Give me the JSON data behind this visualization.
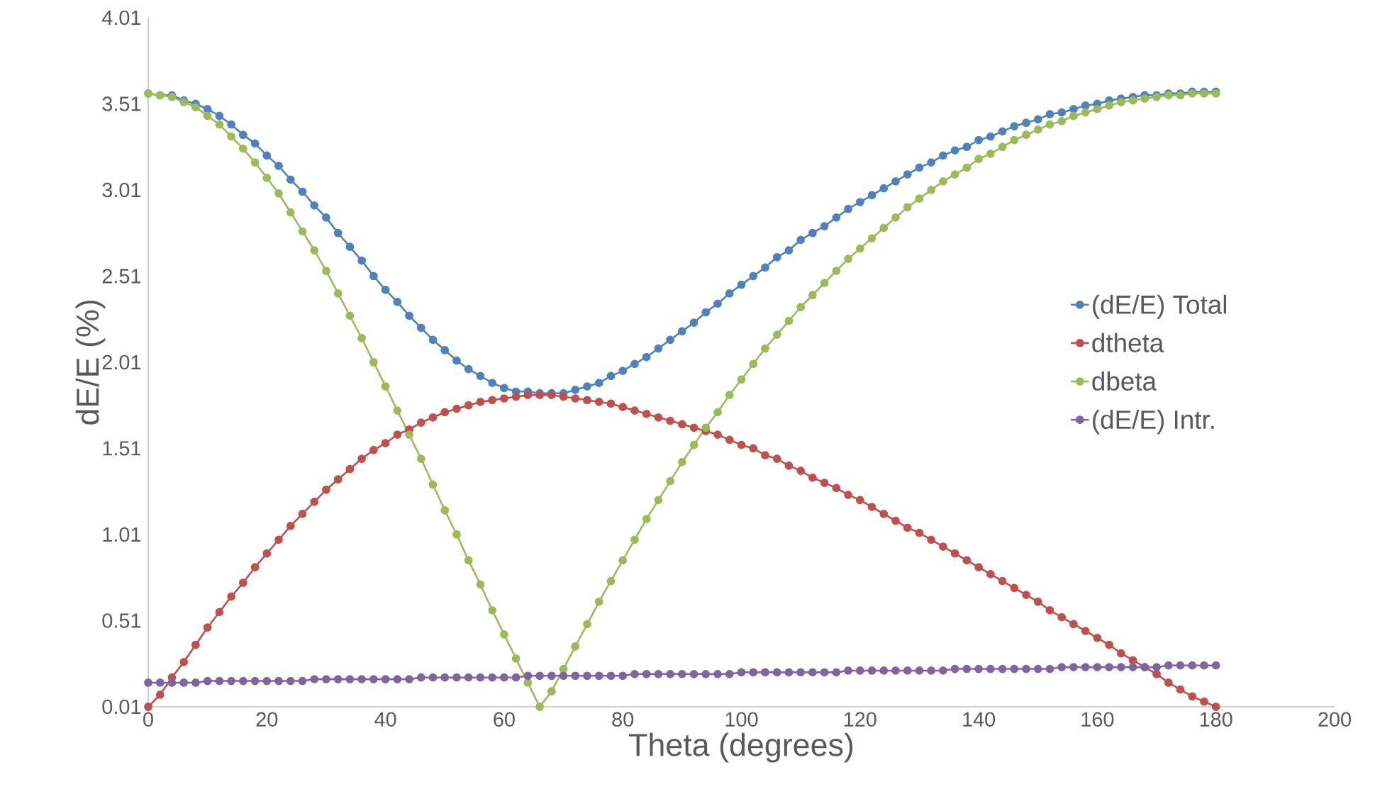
{
  "chart_data": {
    "type": "line",
    "xlabel": "Theta (degrees)",
    "ylabel": "dE/E (%)",
    "x": [
      0,
      2,
      4,
      6,
      8,
      10,
      12,
      14,
      16,
      18,
      20,
      22,
      24,
      26,
      28,
      30,
      32,
      34,
      36,
      38,
      40,
      42,
      44,
      46,
      48,
      50,
      52,
      54,
      56,
      58,
      60,
      62,
      64,
      66,
      68,
      70,
      72,
      74,
      76,
      78,
      80,
      82,
      84,
      86,
      88,
      90,
      92,
      94,
      96,
      98,
      100,
      102,
      104,
      106,
      108,
      110,
      112,
      114,
      116,
      118,
      120,
      122,
      124,
      126,
      128,
      130,
      132,
      134,
      136,
      138,
      140,
      142,
      144,
      146,
      148,
      150,
      152,
      154,
      156,
      158,
      160,
      162,
      164,
      166,
      168,
      170,
      172,
      174,
      176,
      178,
      180
    ],
    "series": [
      {
        "name": "(dE/E) Total",
        "color": "#4f81bd",
        "values": [
          3.57,
          3.56,
          3.56,
          3.53,
          3.51,
          3.48,
          3.44,
          3.39,
          3.33,
          3.28,
          3.21,
          3.15,
          3.07,
          3.0,
          2.92,
          2.85,
          2.76,
          2.68,
          2.6,
          2.51,
          2.43,
          2.36,
          2.28,
          2.21,
          2.14,
          2.08,
          2.02,
          1.97,
          1.93,
          1.89,
          1.86,
          1.84,
          1.84,
          1.83,
          1.83,
          1.83,
          1.85,
          1.87,
          1.89,
          1.93,
          1.96,
          2.0,
          2.04,
          2.09,
          2.14,
          2.19,
          2.24,
          2.3,
          2.35,
          2.41,
          2.46,
          2.51,
          2.56,
          2.62,
          2.66,
          2.72,
          2.76,
          2.8,
          2.85,
          2.9,
          2.94,
          2.98,
          3.02,
          3.06,
          3.1,
          3.14,
          3.17,
          3.21,
          3.24,
          3.26,
          3.3,
          3.32,
          3.35,
          3.38,
          3.4,
          3.42,
          3.45,
          3.46,
          3.48,
          3.5,
          3.51,
          3.53,
          3.54,
          3.55,
          3.56,
          3.56,
          3.57,
          3.57,
          3.58,
          3.58,
          3.58
        ]
      },
      {
        "name": "dtheta",
        "color": "#c0504d",
        "values": [
          0.01,
          0.08,
          0.18,
          0.27,
          0.37,
          0.47,
          0.56,
          0.65,
          0.73,
          0.82,
          0.9,
          0.98,
          1.06,
          1.13,
          1.2,
          1.27,
          1.33,
          1.39,
          1.45,
          1.5,
          1.54,
          1.59,
          1.62,
          1.66,
          1.69,
          1.72,
          1.74,
          1.76,
          1.78,
          1.79,
          1.8,
          1.81,
          1.82,
          1.82,
          1.82,
          1.81,
          1.8,
          1.79,
          1.78,
          1.77,
          1.75,
          1.73,
          1.71,
          1.69,
          1.67,
          1.65,
          1.63,
          1.61,
          1.59,
          1.56,
          1.53,
          1.51,
          1.47,
          1.45,
          1.41,
          1.38,
          1.34,
          1.31,
          1.28,
          1.24,
          1.21,
          1.17,
          1.13,
          1.09,
          1.05,
          1.02,
          0.98,
          0.94,
          0.9,
          0.86,
          0.82,
          0.78,
          0.74,
          0.7,
          0.66,
          0.62,
          0.57,
          0.53,
          0.49,
          0.45,
          0.41,
          0.37,
          0.32,
          0.28,
          0.24,
          0.2,
          0.15,
          0.11,
          0.07,
          0.04,
          0.01
        ]
      },
      {
        "name": "dbeta",
        "color": "#9bbb59",
        "values": [
          3.57,
          3.56,
          3.55,
          3.52,
          3.49,
          3.44,
          3.39,
          3.32,
          3.25,
          3.17,
          3.08,
          2.99,
          2.88,
          2.77,
          2.66,
          2.54,
          2.41,
          2.28,
          2.15,
          2.01,
          1.87,
          1.73,
          1.59,
          1.45,
          1.3,
          1.15,
          1.01,
          0.86,
          0.72,
          0.57,
          0.43,
          0.29,
          0.15,
          0.01,
          0.1,
          0.23,
          0.36,
          0.49,
          0.62,
          0.74,
          0.86,
          0.98,
          1.1,
          1.21,
          1.32,
          1.43,
          1.53,
          1.63,
          1.72,
          1.82,
          1.91,
          2.0,
          2.09,
          2.17,
          2.25,
          2.33,
          2.4,
          2.47,
          2.54,
          2.61,
          2.67,
          2.73,
          2.79,
          2.85,
          2.91,
          2.96,
          3.01,
          3.06,
          3.1,
          3.14,
          3.19,
          3.22,
          3.26,
          3.3,
          3.33,
          3.36,
          3.39,
          3.41,
          3.44,
          3.46,
          3.48,
          3.5,
          3.52,
          3.53,
          3.54,
          3.55,
          3.56,
          3.56,
          3.57,
          3.57,
          3.57
        ]
      },
      {
        "name": "(dE/E) Intr.",
        "color": "#8064a2",
        "values": [
          0.15,
          0.15,
          0.15,
          0.15,
          0.15,
          0.16,
          0.16,
          0.16,
          0.16,
          0.16,
          0.16,
          0.16,
          0.16,
          0.16,
          0.17,
          0.17,
          0.17,
          0.17,
          0.17,
          0.17,
          0.17,
          0.17,
          0.17,
          0.18,
          0.18,
          0.18,
          0.18,
          0.18,
          0.18,
          0.18,
          0.18,
          0.18,
          0.19,
          0.19,
          0.19,
          0.19,
          0.19,
          0.19,
          0.19,
          0.19,
          0.19,
          0.2,
          0.2,
          0.2,
          0.2,
          0.2,
          0.2,
          0.2,
          0.2,
          0.2,
          0.21,
          0.21,
          0.21,
          0.21,
          0.21,
          0.21,
          0.21,
          0.21,
          0.21,
          0.22,
          0.22,
          0.22,
          0.22,
          0.22,
          0.22,
          0.22,
          0.22,
          0.22,
          0.23,
          0.23,
          0.23,
          0.23,
          0.23,
          0.23,
          0.23,
          0.23,
          0.23,
          0.24,
          0.24,
          0.24,
          0.24,
          0.24,
          0.24,
          0.24,
          0.24,
          0.24,
          0.25,
          0.25,
          0.25,
          0.25,
          0.25
        ]
      }
    ],
    "xlim": [
      0,
      200
    ],
    "xticks": [
      0,
      20,
      40,
      60,
      80,
      100,
      120,
      140,
      160,
      180,
      200
    ],
    "ylim": [
      0.01,
      4.01
    ],
    "yticks": [
      0.01,
      0.51,
      1.01,
      1.51,
      2.01,
      2.51,
      3.01,
      3.51,
      4.01
    ],
    "grid": false,
    "legend": "right",
    "marker": "circle",
    "line_style": "solid"
  }
}
